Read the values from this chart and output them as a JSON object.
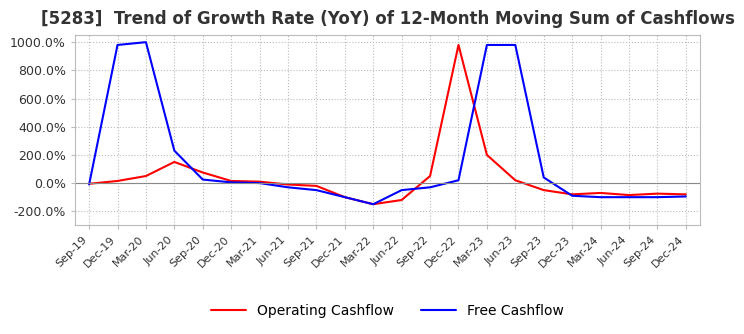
{
  "title": "[5283]  Trend of Growth Rate (YoY) of 12-Month Moving Sum of Cashflows",
  "title_fontsize": 12,
  "ylim": [
    -300,
    1050
  ],
  "yticks": [
    -200,
    0,
    200,
    400,
    600,
    800,
    1000
  ],
  "ytick_labels": [
    "-200.0%",
    "0.0%",
    "200.0%",
    "400.0%",
    "600.0%",
    "800.0%",
    "1000.0%"
  ],
  "background_color": "#ffffff",
  "plot_background": "#ffffff",
  "grid_color": "#bbbbbb",
  "legend_labels": [
    "Operating Cashflow",
    "Free Cashflow"
  ],
  "line_colors": [
    "#ff0000",
    "#0000ff"
  ],
  "x_labels": [
    "Sep-19",
    "Dec-19",
    "Mar-20",
    "Jun-20",
    "Sep-20",
    "Dec-20",
    "Mar-21",
    "Jun-21",
    "Sep-21",
    "Dec-21",
    "Mar-22",
    "Jun-22",
    "Sep-22",
    "Dec-22",
    "Mar-23",
    "Jun-23",
    "Sep-23",
    "Dec-23",
    "Mar-24",
    "Jun-24",
    "Sep-24",
    "Dec-24"
  ],
  "operating_cashflow": [
    -5,
    15,
    50,
    150,
    75,
    15,
    10,
    -10,
    -20,
    -100,
    -150,
    -120,
    50,
    980,
    200,
    20,
    -50,
    -80,
    -70,
    -85,
    -75,
    -80
  ],
  "free_cashflow": [
    -10,
    980,
    1000,
    230,
    25,
    5,
    0,
    -30,
    -50,
    -100,
    -150,
    -50,
    -30,
    20,
    980,
    980,
    40,
    -90,
    -100,
    -100,
    -100,
    -95
  ]
}
